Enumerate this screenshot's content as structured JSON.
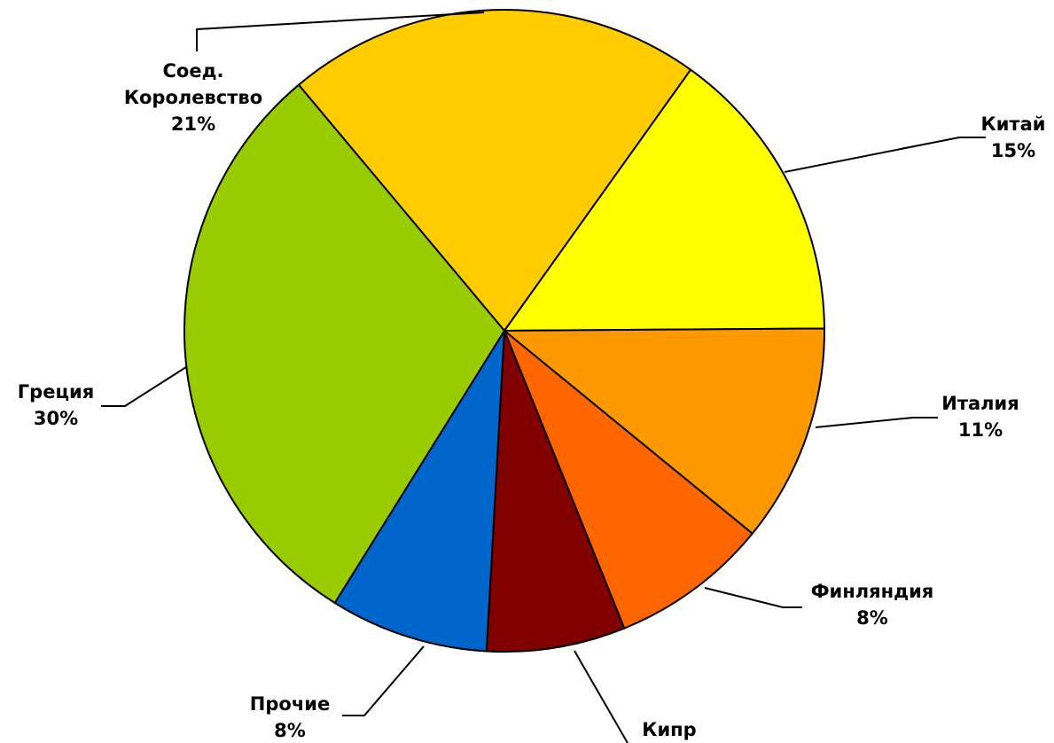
{
  "chart_data": {
    "type": "pie",
    "slices": [
      {
        "label_lines": [
          "Соед.",
          "Королевство"
        ],
        "value": 21,
        "value_label": "21%",
        "color": "#ffcc00"
      },
      {
        "label_lines": [
          "Китай"
        ],
        "value": 15,
        "value_label": "15%",
        "color": "#ffff00"
      },
      {
        "label_lines": [
          "Италия"
        ],
        "value": 11,
        "value_label": "11%",
        "color": "#ff9900"
      },
      {
        "label_lines": [
          "Финляндия"
        ],
        "value": 8,
        "value_label": "8%",
        "color": "#ff6600"
      },
      {
        "label_lines": [
          "Кипр"
        ],
        "value": 7,
        "value_label": "",
        "color": "#800000"
      },
      {
        "label_lines": [
          "Прочие"
        ],
        "value": 8,
        "value_label": "8%",
        "color": "#0066cc"
      },
      {
        "label_lines": [
          "Греция"
        ],
        "value": 30,
        "value_label": "30%",
        "color": "#99cc00"
      }
    ]
  }
}
